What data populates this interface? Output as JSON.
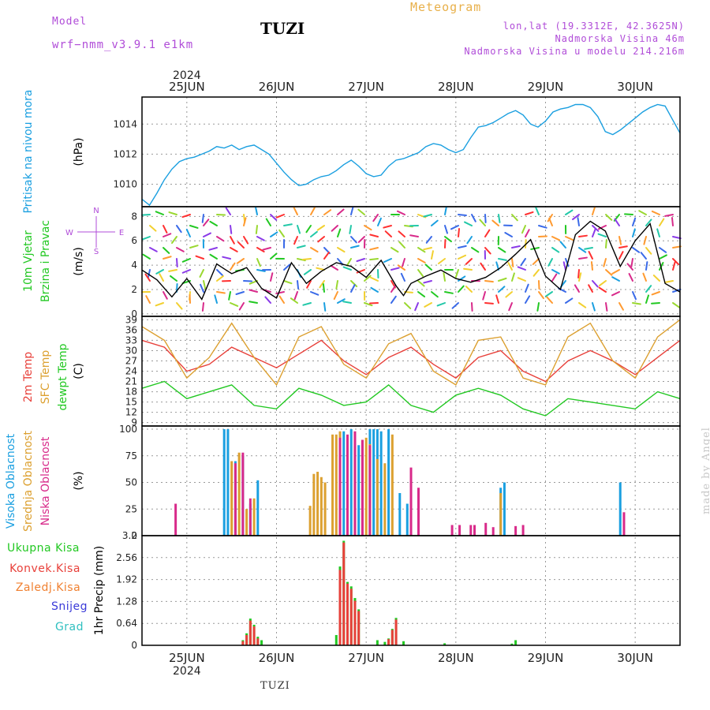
{
  "header": {
    "model_label": "Model",
    "model_name": "wrf−nmm_v3.9.1  e1km",
    "station": "TUZI",
    "product": "Meteogram",
    "coords": "lon,lat (19.3312E, 42.3625N)",
    "elevation": "Nadmorska Visina 46m",
    "model_elevation": "Nadmorska Visina u modelu 214.216m"
  },
  "footer": {
    "station": "TUZI",
    "credit": "made by Angel"
  },
  "colors": {
    "pressure": "#1a9fe0",
    "temp2m": "#e8403a",
    "sfc": "#dca030",
    "dewpt": "#22c822",
    "high_cloud": "#1a9fe0",
    "mid_cloud": "#dca030",
    "low_cloud": "#d82a8a",
    "total_precip": "#22c822",
    "conv_precip": "#e8403a",
    "frozen": "#f08030",
    "snow": "#3a3ad8",
    "grad": "#30c0c0",
    "purple": "#b04cd8"
  },
  "chart_data": {
    "x_axis": {
      "top_year": "2024",
      "bottom_year": "2024",
      "days": [
        "25JUN",
        "26JUN",
        "27JUN",
        "28JUN",
        "29JUN",
        "30JUN"
      ],
      "start_hours_before_25JUN": 12,
      "span_hours": 144
    },
    "panels": [
      {
        "type": "line",
        "id": "pressure",
        "ylabel": [
          "Pritisak na nivou mora"
        ],
        "unit": "(hPa)",
        "yticks": [
          1010,
          1012,
          1014
        ],
        "ylim": [
          1008.5,
          1015.8
        ],
        "series": [
          {
            "name": "Pritisak na nivou mora",
            "color_key": "pressure",
            "x": [
              0,
              2,
              4,
              6,
              8,
              10,
              12,
              14,
              16,
              18,
              20,
              22,
              24,
              26,
              28,
              30,
              32,
              34,
              36,
              38,
              40,
              42,
              44,
              46,
              48,
              50,
              52,
              54,
              56,
              58,
              60,
              62,
              64,
              66,
              68,
              70,
              72,
              74,
              76,
              78,
              80,
              82,
              84,
              86,
              88,
              90,
              92,
              94,
              96,
              98,
              100,
              102,
              104,
              106,
              108,
              110,
              112,
              114,
              116,
              118,
              120,
              122,
              124,
              126,
              128,
              130,
              132,
              134,
              136,
              138,
              140,
              142,
              144
            ],
            "values": [
              1009.0,
              1008.6,
              1009.4,
              1010.3,
              1011.0,
              1011.5,
              1011.7,
              1011.8,
              1012.0,
              1012.2,
              1012.5,
              1012.4,
              1012.6,
              1012.3,
              1012.5,
              1012.6,
              1012.3,
              1012.0,
              1011.4,
              1010.8,
              1010.3,
              1009.9,
              1010.0,
              1010.3,
              1010.5,
              1010.6,
              1010.9,
              1011.3,
              1011.6,
              1011.2,
              1010.7,
              1010.5,
              1010.6,
              1011.2,
              1011.6,
              1011.7,
              1011.9,
              1012.1,
              1012.5,
              1012.7,
              1012.6,
              1012.3,
              1012.1,
              1012.3,
              1013.1,
              1013.8,
              1013.9,
              1014.1,
              1014.4,
              1014.7,
              1014.9,
              1014.6,
              1014.0,
              1013.8,
              1014.2,
              1014.8,
              1015.0,
              1015.1,
              1015.3,
              1015.3,
              1015.1,
              1014.5,
              1013.5,
              1013.3,
              1013.6,
              1014.0,
              1014.4,
              1014.8,
              1015.1,
              1015.3,
              1015.2,
              1014.3,
              1013.4
            ]
          }
        ]
      },
      {
        "type": "line+barbs",
        "id": "wind",
        "ylabel": [
          "10m Vjetar",
          "Brzina i Pravac"
        ],
        "unit": "(m/s)",
        "compass": {
          "n": "N",
          "s": "S",
          "w": "W",
          "e": "E"
        },
        "yticks": [
          0,
          2,
          4,
          6,
          8
        ],
        "ylim": [
          -0.2,
          8.8
        ],
        "series": [
          {
            "name": "Brzina",
            "color": "#000000",
            "x": [
              0,
              4,
              8,
              12,
              16,
              20,
              22,
              24,
              28,
              32,
              36,
              40,
              44,
              46,
              48,
              52,
              56,
              60,
              64,
              68,
              70,
              72,
              76,
              80,
              84,
              88,
              92,
              96,
              100,
              104,
              108,
              112,
              116,
              120,
              124,
              128,
              132,
              136,
              140,
              144
            ],
            "values": [
              3.6,
              2.8,
              1.4,
              2.9,
              1.2,
              4.1,
              3.7,
              3.3,
              3.8,
              2.1,
              1.3,
              4.2,
              2.5,
              3.0,
              3.5,
              4.2,
              3.9,
              3.0,
              4.4,
              2.3,
              1.5,
              2.5,
              3.1,
              3.6,
              2.9,
              2.6,
              3.0,
              3.8,
              4.9,
              6.1,
              3.1,
              2.0,
              6.5,
              7.6,
              6.8,
              3.9,
              6.0,
              7.4,
              2.5,
              1.8
            ]
          }
        ]
      },
      {
        "type": "line",
        "id": "temperature",
        "ylabel": [
          "2m Temp",
          "SFC Temp",
          "dewpt Temp"
        ],
        "unit": "(C)",
        "yticks": [
          9,
          12,
          15,
          18,
          21,
          24,
          27,
          30,
          33,
          36,
          39
        ],
        "ylim": [
          8,
          40
        ],
        "series": [
          {
            "name": "2m Temp",
            "color_key": "temp2m",
            "x": [
              0,
              6,
              12,
              18,
              24,
              30,
              36,
              42,
              48,
              54,
              60,
              66,
              72,
              78,
              84,
              90,
              96,
              102,
              108,
              114,
              120,
              126,
              132,
              138,
              144
            ],
            "values": [
              33,
              31,
              24,
              26,
              31,
              28,
              25,
              29,
              33,
              27,
              23,
              28,
              31,
              26,
              22,
              28,
              30,
              24,
              21,
              27,
              30,
              27,
              23,
              28,
              33
            ]
          },
          {
            "name": "SFC Temp",
            "color_key": "sfc",
            "x": [
              0,
              6,
              12,
              18,
              24,
              30,
              36,
              42,
              48,
              54,
              60,
              66,
              72,
              78,
              84,
              90,
              96,
              102,
              108,
              114,
              120,
              126,
              132,
              138,
              144
            ],
            "values": [
              37,
              33,
              22,
              28,
              38,
              28,
              20,
              34,
              37,
              26,
              22,
              32,
              35,
              24,
              20,
              33,
              34,
              22,
              20,
              34,
              38,
              27,
              22,
              34,
              39
            ]
          },
          {
            "name": "dewpt Temp",
            "color_key": "dewpt",
            "x": [
              0,
              6,
              12,
              18,
              24,
              30,
              36,
              42,
              48,
              54,
              60,
              66,
              72,
              78,
              84,
              90,
              96,
              102,
              108,
              114,
              120,
              126,
              132,
              138,
              144
            ],
            "values": [
              19,
              21,
              16,
              18,
              20,
              14,
              13,
              19,
              17,
              14,
              15,
              20,
              14,
              12,
              17,
              19,
              17,
              13,
              11,
              16,
              15,
              14,
              13,
              18,
              16
            ]
          }
        ]
      },
      {
        "type": "bar",
        "id": "clouds",
        "ylabel": [
          "Visoka Oblacnost",
          "Srednja Oblacnost",
          "Niska Oblacnost"
        ],
        "unit": "(%)",
        "yticks": [
          0,
          25,
          50,
          75,
          100
        ],
        "ylim": [
          0,
          103
        ],
        "series": [
          {
            "name": "Visoka Oblacnost",
            "color_key": "high_cloud",
            "x": [
              22,
              23,
              25,
              27,
              29,
              31,
              53,
              54,
              56,
              58,
              61,
              62,
              63,
              64,
              66,
              69,
              71,
              96,
              97,
              128
            ],
            "values": [
              100,
              100,
              70,
              75,
              30,
              52,
              97,
              98,
              100,
              85,
              100,
              100,
              100,
              98,
              100,
              40,
              30,
              45,
              50,
              50
            ]
          },
          {
            "name": "Srednja Oblacnost",
            "color_key": "mid_cloud",
            "x": [
              24,
              26,
              28,
              30,
              45,
              46,
              47,
              48,
              49,
              51,
              52,
              53,
              55,
              57,
              59,
              60,
              61,
              63,
              65,
              67,
              96
            ],
            "values": [
              70,
              78,
              25,
              35,
              28,
              58,
              60,
              55,
              50,
              95,
              95,
              98,
              94,
              84,
              90,
              92,
              86,
              72,
              68,
              95,
              40
            ]
          },
          {
            "name": "Niska Oblacnost",
            "color_key": "low_cloud",
            "x": [
              9,
              25,
              27,
              29,
              53,
              55,
              57,
              59,
              61,
              72,
              74,
              83,
              85,
              88,
              89,
              92,
              94,
              100,
              102,
              129
            ],
            "values": [
              30,
              68,
              78,
              35,
              92,
              95,
              98,
              90,
              85,
              64,
              45,
              10,
              10,
              10,
              10,
              12,
              8,
              9,
              10,
              22
            ]
          }
        ]
      },
      {
        "type": "bar",
        "id": "precip",
        "ylabel": [
          "Ukupna Kisa",
          "Konvek.Kisa",
          "Zaledj.Kisa",
          "Snijeg",
          "Grad"
        ],
        "unit": "1hr Precip (mm)",
        "yticks": [
          0,
          0.64,
          1.28,
          1.92,
          2.56,
          3.2
        ],
        "ylim": [
          0,
          3.2
        ],
        "series": [
          {
            "name": "Ukupna Kisa",
            "color_key": "total_precip",
            "x": [
              27,
              28,
              29,
              30,
              31,
              32,
              52,
              53,
              54,
              55,
              56,
              57,
              58,
              63,
              65,
              66,
              67,
              68,
              70,
              81,
              99,
              100
            ],
            "values": [
              0.15,
              0.35,
              0.78,
              0.6,
              0.25,
              0.15,
              0.3,
              2.3,
              3.05,
              1.85,
              1.72,
              1.38,
              1.05,
              0.15,
              0.1,
              0.2,
              0.48,
              0.8,
              0.12,
              0.06,
              0.05,
              0.15
            ]
          },
          {
            "name": "Konvek.Kisa",
            "color_key": "conv_precip",
            "x": [
              27,
              28,
              29,
              30,
              31,
              53,
              54,
              55,
              56,
              57,
              58,
              66,
              67,
              68
            ],
            "values": [
              0.12,
              0.3,
              0.72,
              0.55,
              0.2,
              2.2,
              3.0,
              1.8,
              1.65,
              1.3,
              1.0,
              0.18,
              0.45,
              0.75
            ]
          }
        ]
      }
    ]
  }
}
